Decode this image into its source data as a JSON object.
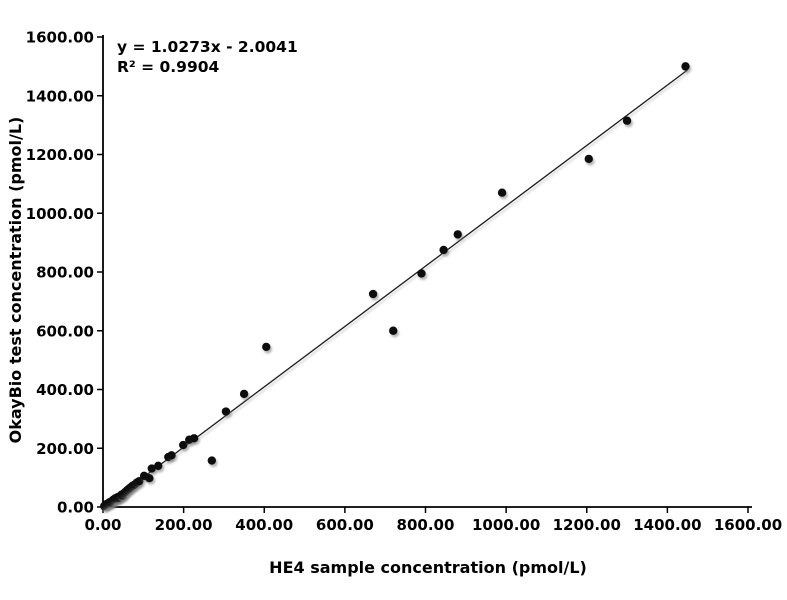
{
  "figure": {
    "background": "#ffffff"
  },
  "chart_data": {
    "type": "scatter",
    "title": "",
    "xlabel": "HE4 sample concentration (pmol/L)",
    "ylabel": "OkayBio test concentration (pmol/L)",
    "xlim": [
      0,
      1600
    ],
    "ylim": [
      0,
      1600
    ],
    "tick_step": 200,
    "x_tick_labels": [
      "0.00",
      "200.00",
      "400.00",
      "600.00",
      "800.00",
      "1000.00",
      "1200.00",
      "1400.00",
      "1600.00"
    ],
    "y_tick_labels": [
      "0.00",
      "200.00",
      "400.00",
      "600.00",
      "800.00",
      "1000.00",
      "1200.00",
      "1400.00",
      "1600.00"
    ],
    "grid": false,
    "legend_position": "none",
    "annotation": {
      "equation": "y = 1.0273x - 2.0041",
      "r_squared": "R² = 0.9904"
    },
    "trendline": {
      "slope": 1.0273,
      "intercept": -2.0041,
      "x_start": 0,
      "x_end": 1450,
      "color": "#1a1a1a"
    },
    "point_color": "#0d0d0d",
    "axis_color": "#000000",
    "points": [
      [
        3,
        3
      ],
      [
        6,
        7
      ],
      [
        9,
        10
      ],
      [
        13,
        12
      ],
      [
        16,
        16
      ],
      [
        19,
        15
      ],
      [
        22,
        20
      ],
      [
        25,
        24
      ],
      [
        28,
        27
      ],
      [
        31,
        30
      ],
      [
        34,
        29
      ],
      [
        37,
        34
      ],
      [
        40,
        31
      ],
      [
        43,
        38
      ],
      [
        46,
        42
      ],
      [
        49,
        39
      ],
      [
        52,
        47
      ],
      [
        56,
        52
      ],
      [
        60,
        57
      ],
      [
        64,
        62
      ],
      [
        68,
        66
      ],
      [
        73,
        72
      ],
      [
        78,
        76
      ],
      [
        84,
        83
      ],
      [
        90,
        88
      ],
      [
        102,
        106
      ],
      [
        115,
        98
      ],
      [
        121,
        131
      ],
      [
        137,
        140
      ],
      [
        162,
        170
      ],
      [
        170,
        176
      ],
      [
        199,
        211
      ],
      [
        214,
        229
      ],
      [
        226,
        234
      ],
      [
        270,
        158
      ],
      [
        305,
        325
      ],
      [
        350,
        385
      ],
      [
        405,
        545
      ],
      [
        670,
        725
      ],
      [
        720,
        600
      ],
      [
        790,
        795
      ],
      [
        845,
        875
      ],
      [
        880,
        928
      ],
      [
        990,
        1070
      ],
      [
        1205,
        1185
      ],
      [
        1300,
        1315
      ],
      [
        1445,
        1500
      ]
    ]
  }
}
